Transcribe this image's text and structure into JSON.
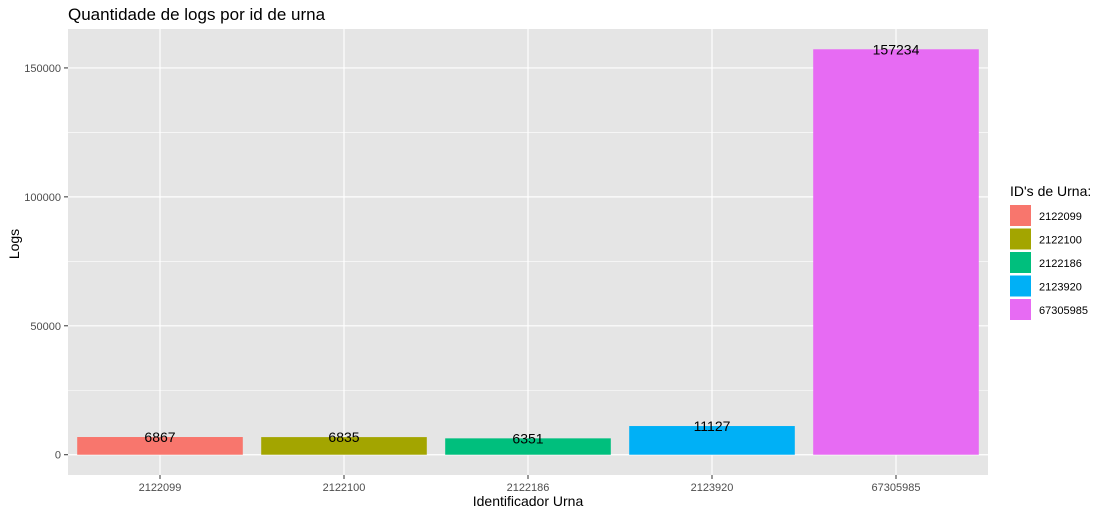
{
  "chart_data": {
    "type": "bar",
    "title": "Quantidade de logs por id de urna",
    "xlabel": "Identificador Urna",
    "ylabel": "Logs",
    "categories": [
      "2122099",
      "2122100",
      "2122186",
      "2123920",
      "67305985"
    ],
    "values": [
      6867,
      6835,
      6351,
      11127,
      157234
    ],
    "data_labels": [
      "6867",
      "6835",
      "6351",
      "11127",
      "157234"
    ],
    "colors": [
      "#F8766D",
      "#A3A500",
      "#00BF7D",
      "#00B0F6",
      "#E76BF3"
    ],
    "ylim": [
      -7862,
      165096
    ],
    "yticks": [
      0,
      50000,
      100000,
      150000
    ],
    "ytick_labels": [
      "0",
      "50000",
      "100000",
      "150000"
    ],
    "grid": true,
    "legend": {
      "title": "ID's de Urna:",
      "position": "right",
      "entries": [
        "2122099",
        "2122100",
        "2122186",
        "2123920",
        "67305985"
      ]
    },
    "panel_background": "#E5E5E5",
    "grid_color": "#FFFFFF"
  }
}
